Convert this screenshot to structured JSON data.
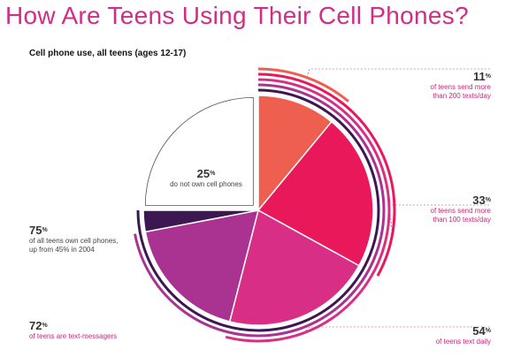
{
  "title": "How Are Teens Using Their Cell Phones?",
  "subtitle": "Cell phone use, all teens (ages 12-17)",
  "colors": {
    "title": "#cf2e87",
    "s200": "#ef5f50",
    "s100": "#e8185a",
    "daily": "#d92e86",
    "messagers": "#aa3290",
    "own": "#3d1752",
    "none": "#ffffff"
  },
  "chart_data": {
    "type": "pie",
    "title": "How Are Teens Using Their Cell Phones?",
    "subtitle": "Cell phone use, all teens (ages 12-17)",
    "slices": [
      {
        "key": "s200",
        "value": 11
      },
      {
        "key": "s100",
        "value": 22
      },
      {
        "key": "daily",
        "value": 21
      },
      {
        "key": "messagers",
        "value": 18
      },
      {
        "key": "own",
        "value": 3
      },
      {
        "key": "none",
        "value": 25
      }
    ],
    "annotations": [
      {
        "key": "a11",
        "value": "11",
        "unit": "%",
        "text": [
          "of teens send more",
          "than 200 texts/day"
        ]
      },
      {
        "key": "a33",
        "value": "33",
        "unit": "%",
        "text": [
          "of teens send more",
          "than 100 texts/day"
        ]
      },
      {
        "key": "a54",
        "value": "54",
        "unit": "%",
        "text": [
          "of teens text daily"
        ]
      },
      {
        "key": "a72",
        "value": "72",
        "unit": "%",
        "text": [
          "of teens are text-messagers"
        ]
      },
      {
        "key": "a75",
        "value": "75",
        "unit": "%",
        "text": [
          "of all teens  own cell phones,",
          "up from 45% in 2004"
        ]
      },
      {
        "key": "a25",
        "value": "25",
        "unit": "%",
        "text": [
          "do not own cell phones"
        ]
      }
    ]
  }
}
